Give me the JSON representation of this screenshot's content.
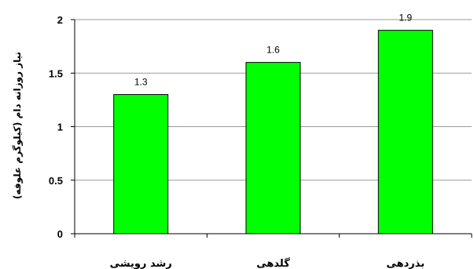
{
  "chart_data": {
    "type": "bar",
    "categories": [
      "رشد رویشی",
      "گلدهی",
      "بذردهی"
    ],
    "values": [
      1.3,
      1.6,
      1.9
    ],
    "data_labels": [
      "1.3",
      "1.6",
      "1.9"
    ],
    "ylabel": "نیاز روزانه دام (کیلوگرم علوفه)",
    "ylim": [
      0,
      2
    ],
    "yticks": [
      0,
      0.5,
      1,
      1.5,
      2
    ],
    "ytick_labels": [
      "0",
      "0.5",
      "1",
      "1.5",
      "2"
    ],
    "grid": true,
    "legend": "none",
    "colors": {
      "bar": "#00ff00",
      "bar_edge": "#000000",
      "grid": "#999999",
      "axis": "#000000"
    }
  }
}
